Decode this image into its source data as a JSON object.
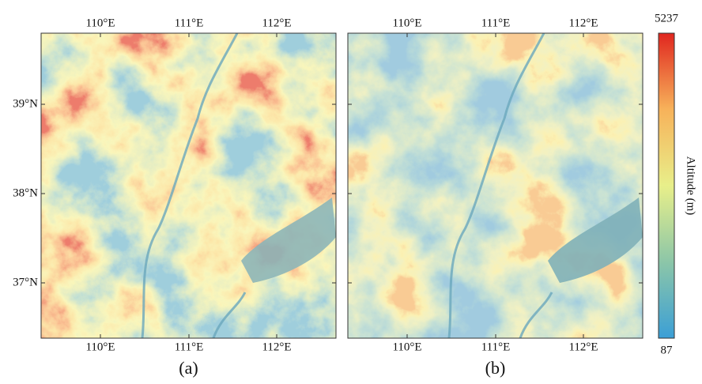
{
  "panels": [
    {
      "label": "(a)",
      "top_ticks": [
        "110°E",
        "111°E",
        "112°E"
      ],
      "bottom_ticks": [
        "110°E",
        "111°E",
        "112°E"
      ],
      "left_ticks": [
        "39°N",
        "38°N",
        "37°N"
      ]
    },
    {
      "label": "(b)",
      "top_ticks": [
        "110°E",
        "111°E",
        "112°E"
      ],
      "bottom_ticks": [
        "110°E",
        "111°E",
        "112°E"
      ]
    }
  ],
  "colorbar": {
    "max": 5237,
    "min": 87,
    "label": "Altitude (m)"
  }
}
